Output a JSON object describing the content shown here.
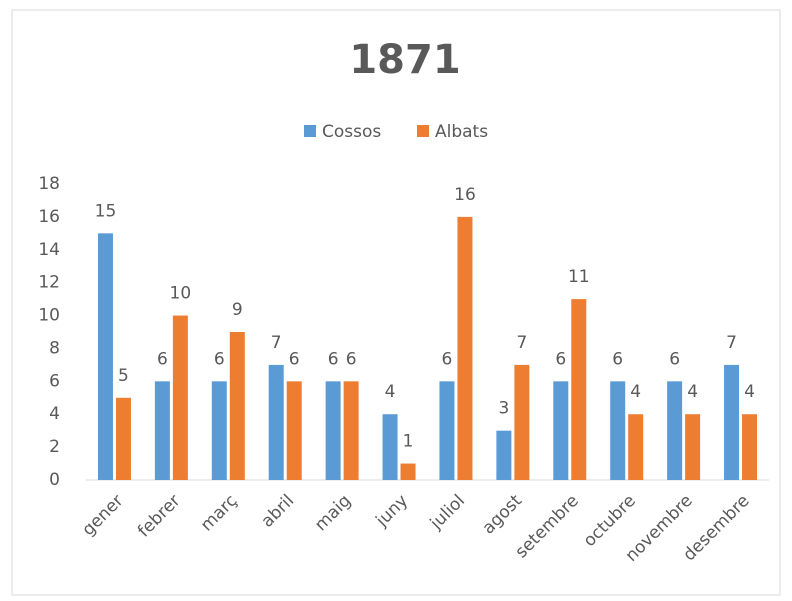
{
  "chart_data": {
    "type": "bar",
    "title": "1871",
    "categories": [
      "gener",
      "febrer",
      "març",
      "abril",
      "maig",
      "juny",
      "juliol",
      "agost",
      "setembre",
      "octubre",
      "novembre",
      "desembre"
    ],
    "series": [
      {
        "name": "Cossos",
        "color": "#5b9bd5",
        "values": [
          15,
          6,
          6,
          7,
          6,
          4,
          6,
          3,
          6,
          6,
          6,
          7
        ]
      },
      {
        "name": "Albats",
        "color": "#ed7d31",
        "values": [
          5,
          10,
          9,
          6,
          6,
          1,
          16,
          7,
          11,
          4,
          4,
          4
        ]
      }
    ],
    "ylim": [
      0,
      18
    ],
    "yticks": [
      0,
      2,
      4,
      6,
      8,
      10,
      12,
      14,
      16,
      18
    ],
    "grid": false,
    "legend": "top"
  }
}
